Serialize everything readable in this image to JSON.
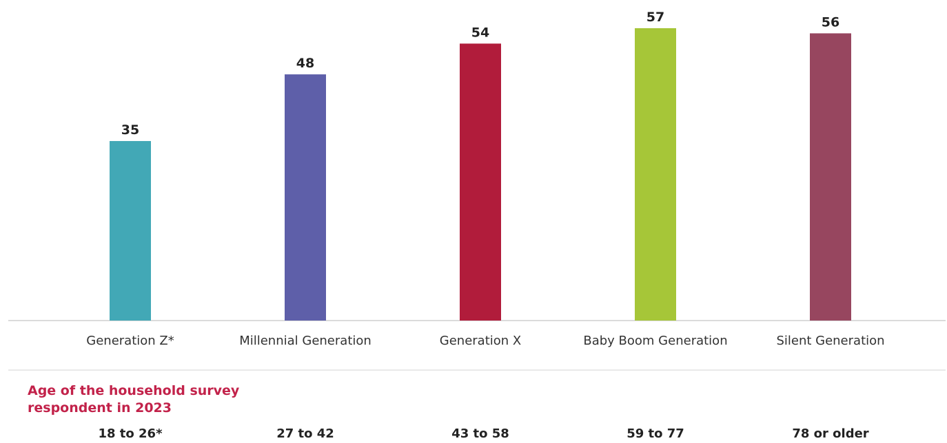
{
  "chart_data": {
    "type": "bar",
    "categories": [
      "Generation Z*",
      "Millennial Generation",
      "Generation X",
      "Baby Boom Generation",
      "Silent Generation"
    ],
    "values": [
      35,
      48,
      54,
      57,
      56
    ],
    "colors": [
      "#42a8b6",
      "#5e5fa9",
      "#b11c3b",
      "#a6c638",
      "#97465f"
    ],
    "title": "",
    "xlabel": "",
    "ylabel": "",
    "ylim": [
      0,
      60
    ],
    "grid": false,
    "data_labels": true
  },
  "age_section": {
    "title": "Age of the household survey respondent in 2023",
    "ranges": [
      "18 to 26*",
      "27 to 42",
      "43 to 58",
      "59 to 77",
      "78 or older"
    ]
  }
}
